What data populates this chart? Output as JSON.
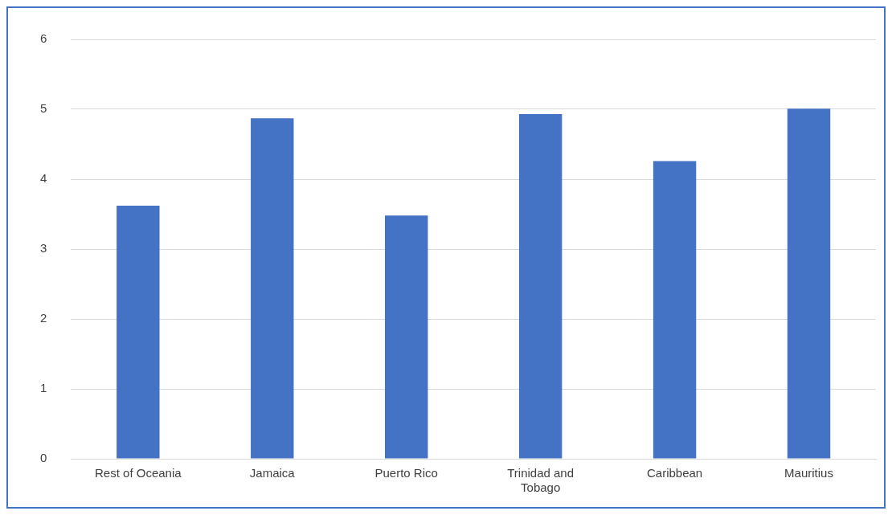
{
  "chart_data": {
    "type": "bar",
    "categories": [
      "Rest of Oceania",
      "Jamaica",
      "Puerto Rico",
      "Trinidad and Tobago",
      "Caribbean",
      "Mauritius"
    ],
    "values": [
      3.62,
      4.87,
      3.48,
      4.93,
      4.26,
      5.01
    ],
    "color": "#4472c4",
    "ylim": [
      0,
      6
    ],
    "yticks": [
      0,
      1,
      2,
      3,
      4,
      5,
      6
    ],
    "grid": "y"
  }
}
